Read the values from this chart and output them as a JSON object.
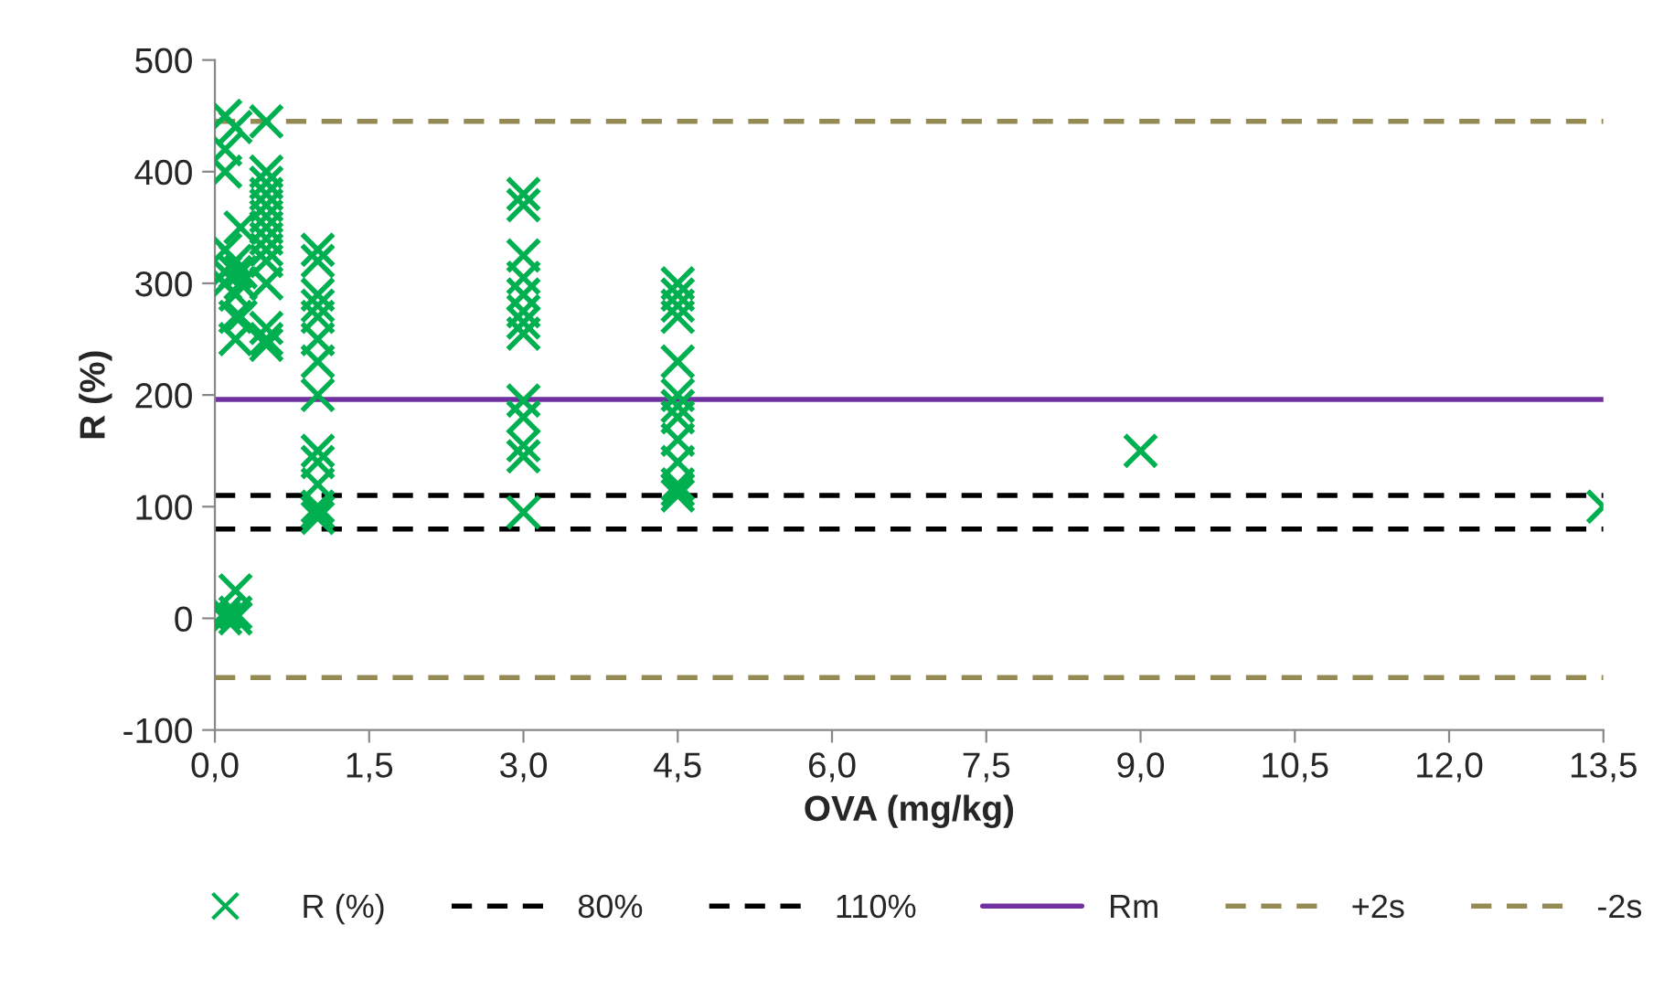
{
  "chart_data": {
    "type": "scatter",
    "xlabel": "OVA (mg/kg)",
    "ylabel": "R (%)",
    "series": [
      {
        "name": "R (%)",
        "color": "#00b050",
        "marker": "cross",
        "x": [
          0.1,
          0.1,
          0.1,
          0.1,
          0.1,
          0.1,
          0.1,
          0.1,
          0.2,
          0.2,
          0.2,
          0.2,
          0.2,
          0.2,
          0.2,
          0.2,
          0.2,
          0.25,
          0.25,
          0.25,
          0.25,
          0.5,
          0.5,
          0.5,
          0.5,
          0.5,
          0.5,
          0.5,
          0.5,
          0.5,
          0.5,
          0.5,
          0.5,
          0.5,
          0.5,
          1.0,
          1.0,
          1.0,
          1.0,
          1.0,
          1.0,
          1.0,
          1.0,
          1.0,
          1.0,
          1.0,
          1.0,
          1.0,
          1.0,
          3.0,
          3.0,
          3.0,
          3.0,
          3.0,
          3.0,
          3.0,
          3.0,
          3.0,
          3.0,
          3.0,
          3.0,
          3.0,
          4.5,
          4.5,
          4.5,
          4.5,
          4.5,
          4.5,
          4.5,
          4.5,
          4.5,
          4.5,
          4.5,
          4.5,
          4.5,
          9.0,
          13.5
        ],
        "values": [
          0,
          5,
          400,
          450,
          420,
          310,
          330,
          300,
          0,
          25,
          5,
          310,
          290,
          270,
          250,
          320,
          440,
          300,
          310,
          350,
          270,
          445,
          400,
          390,
          380,
          370,
          360,
          350,
          340,
          330,
          320,
          300,
          260,
          250,
          245,
          330,
          320,
          290,
          280,
          270,
          250,
          230,
          200,
          150,
          140,
          120,
          100,
          95,
          90,
          380,
          370,
          325,
          305,
          290,
          275,
          265,
          255,
          195,
          180,
          155,
          145,
          95,
          300,
          290,
          280,
          270,
          230,
          200,
          190,
          180,
          160,
          140,
          120,
          115,
          110,
          150,
          100
        ]
      }
    ],
    "ref_lines": [
      {
        "axis": "y",
        "value": 80,
        "label": "80%",
        "color": "#000000",
        "line_style": "dashed"
      },
      {
        "axis": "y",
        "value": 110,
        "label": "110%",
        "color": "#000000",
        "line_style": "dashed"
      },
      {
        "axis": "y",
        "value": 196,
        "label": "Rm",
        "color": "#7030a0",
        "line_style": "solid"
      },
      {
        "axis": "y",
        "value": 445,
        "label": "+2s",
        "color": "#948a54",
        "line_style": "dashed"
      },
      {
        "axis": "y",
        "value": -53,
        "label": "-2s",
        "color": "#948a54",
        "line_style": "dashed"
      }
    ],
    "xlim": [
      0,
      13.5
    ],
    "xticks": [
      {
        "value": 0,
        "label": "0,0"
      },
      {
        "value": 1.5,
        "label": "1,5"
      },
      {
        "value": 3,
        "label": "3,0"
      },
      {
        "value": 4.5,
        "label": "4,5"
      },
      {
        "value": 6,
        "label": "6,0"
      },
      {
        "value": 7.5,
        "label": "7,5"
      },
      {
        "value": 9,
        "label": "9,0"
      },
      {
        "value": 10.5,
        "label": "10,5"
      },
      {
        "value": 12,
        "label": "12,0"
      },
      {
        "value": 13.5,
        "label": "13,5"
      }
    ],
    "ylim": [
      -100,
      500
    ],
    "yticks": [
      -100,
      0,
      100,
      200,
      300,
      400,
      500
    ],
    "grid": false,
    "legend": "bottom"
  }
}
